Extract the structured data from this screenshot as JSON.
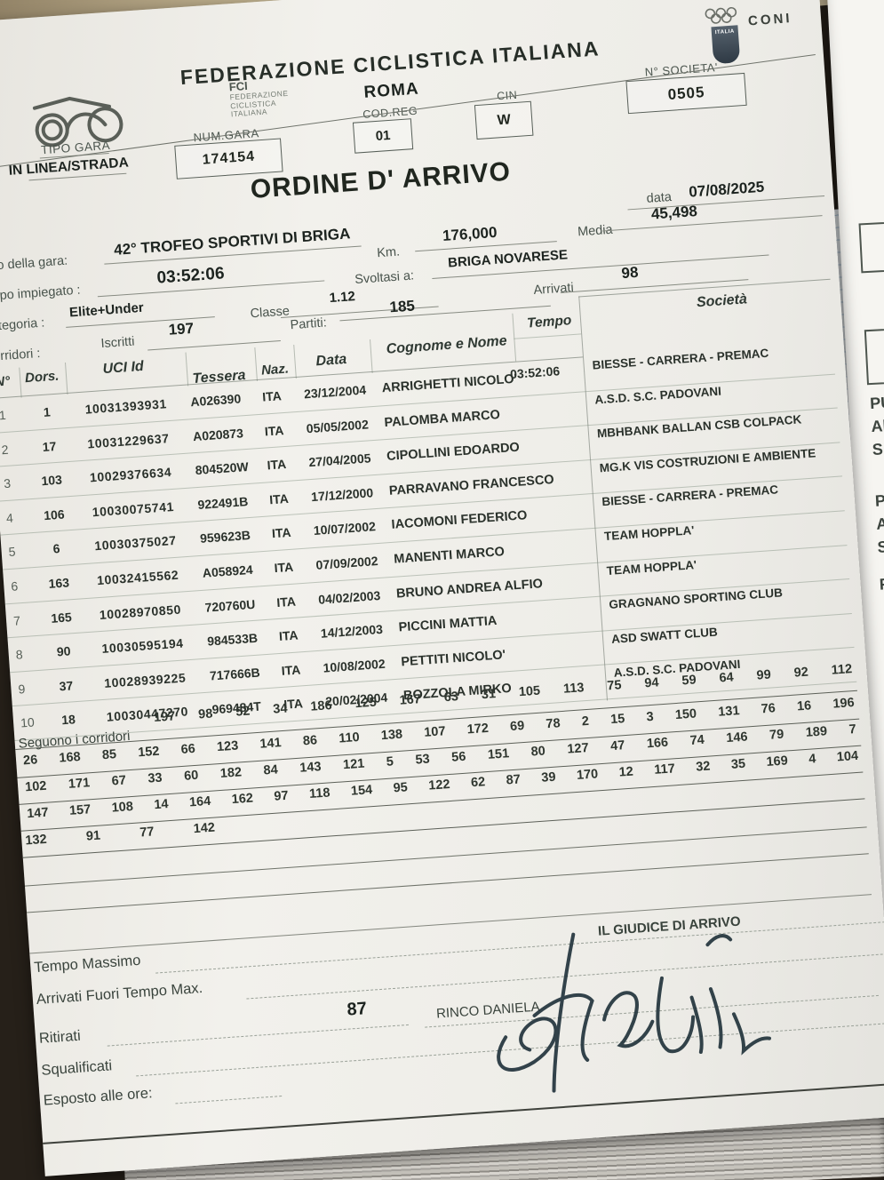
{
  "header": {
    "fci_logo": {
      "abbr": "FCI",
      "lines": [
        "FEDERAZIONE",
        "CICLISTICA",
        "ITALIANA"
      ]
    },
    "federation_title": "FEDERAZIONE CICLISTICA ITALIANA",
    "city": "ROMA",
    "cod_reg": {
      "label": "COD.REG",
      "value": "01"
    },
    "cin": {
      "label": "CIN",
      "value": "W"
    },
    "coni": {
      "label": "CONI",
      "shield_text": "ITALIA"
    },
    "n_societa": {
      "label": "N° SOCIETA'",
      "value": "0505"
    },
    "tipo_gara": {
      "label": "TIPO GARA",
      "value": "IN LINEA/STRADA"
    },
    "num_gara": {
      "label": "NUM.GARA",
      "value": "174154"
    },
    "doc_title": "ORDINE D' ARRIVO",
    "date": {
      "label": "data",
      "value": "07/08/2025"
    }
  },
  "race_info": {
    "titolo": {
      "label": "olo della gara:",
      "value": "42° TROFEO SPORTIVI DI BRIGA"
    },
    "km": {
      "label": "Km.",
      "value": "176,000"
    },
    "media": {
      "label": "Media",
      "value": "45,498"
    },
    "tempo_impiegato": {
      "label": "mpo impiegato :",
      "value": "03:52:06"
    },
    "svoltasi": {
      "label": "Svoltasi a:",
      "value": "BRIGA NOVARESE"
    },
    "categoria": {
      "label": "ategoria :",
      "value": "Elite+Under"
    },
    "classe": {
      "label": "Classe",
      "value": "1.12"
    },
    "arrivati": {
      "label": "Arrivati",
      "value": "98"
    },
    "corridori_label": "orridori :",
    "iscritti": {
      "label": "Iscritti",
      "value": "197"
    },
    "partiti": {
      "label": "Partiti:",
      "value": "185"
    }
  },
  "results_table": {
    "columns": [
      "N°",
      "Dors.",
      "UCI Id",
      "Tessera",
      "Naz.",
      "Data",
      "Cognome e Nome",
      "Tempo",
      "Società"
    ],
    "rows": [
      {
        "pos": "1",
        "dors": "1",
        "uci": "10031393931",
        "tessera": "A026390",
        "naz": "ITA",
        "data": "23/12/2004",
        "nome": "ARRIGHETTI NICOLO'",
        "tempo": "03:52:06",
        "societa": "BIESSE - CARRERA - PREMAC"
      },
      {
        "pos": "2",
        "dors": "17",
        "uci": "10031229637",
        "tessera": "A020873",
        "naz": "ITA",
        "data": "05/05/2002",
        "nome": "PALOMBA MARCO",
        "tempo": "",
        "societa": "A.S.D. S.C. PADOVANI"
      },
      {
        "pos": "3",
        "dors": "103",
        "uci": "10029376634",
        "tessera": "804520W",
        "naz": "ITA",
        "data": "27/04/2005",
        "nome": "CIPOLLINI EDOARDO",
        "tempo": "",
        "societa": "MBHBANK  BALLAN CSB COLPACK"
      },
      {
        "pos": "4",
        "dors": "106",
        "uci": "10030075741",
        "tessera": "922491B",
        "naz": "ITA",
        "data": "17/12/2000",
        "nome": "PARRAVANO FRANCESCO",
        "tempo": "",
        "societa": "MG.K VIS COSTRUZIONI E AMBIENTE"
      },
      {
        "pos": "5",
        "dors": "6",
        "uci": "10030375027",
        "tessera": "959623B",
        "naz": "ITA",
        "data": "10/07/2002",
        "nome": "IACOMONI FEDERICO",
        "tempo": "",
        "societa": "BIESSE - CARRERA - PREMAC"
      },
      {
        "pos": "6",
        "dors": "163",
        "uci": "10032415562",
        "tessera": "A058924",
        "naz": "ITA",
        "data": "07/09/2002",
        "nome": "MANENTI MARCO",
        "tempo": "",
        "societa": "TEAM HOPPLA'"
      },
      {
        "pos": "7",
        "dors": "165",
        "uci": "10028970850",
        "tessera": "720760U",
        "naz": "ITA",
        "data": "04/02/2003",
        "nome": "BRUNO ANDREA ALFIO",
        "tempo": "",
        "societa": "TEAM HOPPLA'"
      },
      {
        "pos": "8",
        "dors": "90",
        "uci": "10030595194",
        "tessera": "984533B",
        "naz": "ITA",
        "data": "14/12/2003",
        "nome": "PICCINI MATTIA",
        "tempo": "",
        "societa": "GRAGNANO SPORTING CLUB"
      },
      {
        "pos": "9",
        "dors": "37",
        "uci": "10028939225",
        "tessera": "717666B",
        "naz": "ITA",
        "data": "10/08/2002",
        "nome": "PETTITI NICOLO'",
        "tempo": "",
        "societa": "ASD SWATT CLUB"
      },
      {
        "pos": "10",
        "dors": "18",
        "uci": "10030447270",
        "tessera": "969484T",
        "naz": "ITA",
        "data": "20/02/2004",
        "nome": "BOZZOLA MIRKO",
        "tempo": "",
        "societa": "A.S.D. S.C. PADOVANI"
      }
    ]
  },
  "seguono": {
    "label": "Seguono i corridori",
    "lines": [
      [
        197,
        98,
        52,
        34,
        186,
        125,
        167,
        63,
        31,
        105,
        113,
        75,
        94,
        59,
        64,
        99,
        92,
        112
      ],
      [
        26,
        168,
        85,
        152,
        66,
        123,
        141,
        86,
        110,
        138,
        107,
        172,
        69,
        78,
        2,
        15,
        3,
        150,
        131,
        76,
        16,
        196
      ],
      [
        102,
        171,
        67,
        33,
        60,
        182,
        84,
        143,
        121,
        5,
        53,
        56,
        151,
        80,
        127,
        47,
        166,
        74,
        146,
        79,
        189,
        7
      ],
      [
        147,
        157,
        108,
        14,
        164,
        162,
        97,
        118,
        154,
        95,
        122,
        62,
        87,
        39,
        170,
        12,
        117,
        32,
        35,
        169,
        4,
        104
      ],
      [
        132,
        91,
        77,
        142
      ]
    ]
  },
  "footer": {
    "tempo_massimo": "Tempo Massimo",
    "arrivati_fuori": "Arrivati Fuori Tempo Max.",
    "ritirati": {
      "label": "Ritirati",
      "value": "87"
    },
    "squalificati": "Squalificati",
    "esposto": "Esposto alle ore:",
    "giudice": {
      "title": "IL GIUDICE DI ARRIVO",
      "name": "RINCO DANIELA"
    }
  },
  "second_sheet_fragments": [
    [
      "PU",
      "Al",
      "S."
    ],
    [
      "P",
      "A",
      "S"
    ],
    [
      "F"
    ]
  ]
}
